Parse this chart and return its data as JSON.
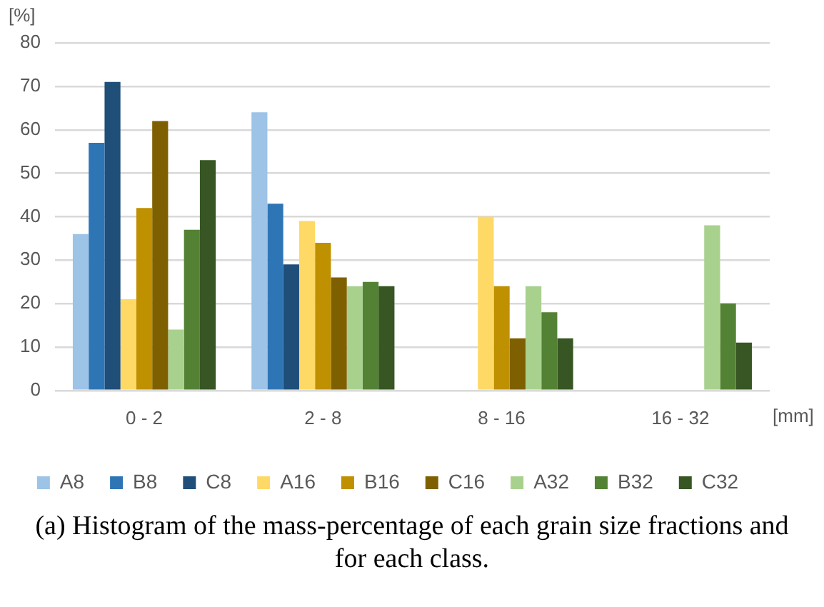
{
  "chart_data": {
    "type": "bar",
    "ylabel": "[%]",
    "xlabel": "[mm]",
    "categories": [
      "0 - 2",
      "2 - 8",
      "8 - 16",
      "16 - 32"
    ],
    "series": [
      {
        "name": "A8",
        "color": "#9dc3e6",
        "values": [
          36,
          64,
          0,
          0
        ]
      },
      {
        "name": "B8",
        "color": "#2e75b6",
        "values": [
          57,
          43,
          0,
          0
        ]
      },
      {
        "name": "C8",
        "color": "#1f4e79",
        "values": [
          71,
          29,
          0,
          0
        ]
      },
      {
        "name": "A16",
        "color": "#ffd966",
        "values": [
          21,
          39,
          40,
          0
        ]
      },
      {
        "name": "B16",
        "color": "#bf9000",
        "values": [
          42,
          34,
          24,
          0
        ]
      },
      {
        "name": "C16",
        "color": "#7f6000",
        "values": [
          62,
          26,
          12,
          0
        ]
      },
      {
        "name": "A32",
        "color": "#a9d18e",
        "values": [
          14,
          24,
          24,
          38
        ]
      },
      {
        "name": "B32",
        "color": "#548235",
        "values": [
          37,
          25,
          18,
          20
        ]
      },
      {
        "name": "C32",
        "color": "#375623",
        "values": [
          53,
          24,
          12,
          11
        ]
      }
    ],
    "ylim": [
      0,
      80
    ],
    "yticks": [
      0,
      10,
      20,
      30,
      40,
      50,
      60,
      70,
      80
    ],
    "grid": "y",
    "legend": "bottom",
    "annotations": [
      "(a) Histogram of the mass-percentage of each grain size fractions and for each class."
    ]
  }
}
